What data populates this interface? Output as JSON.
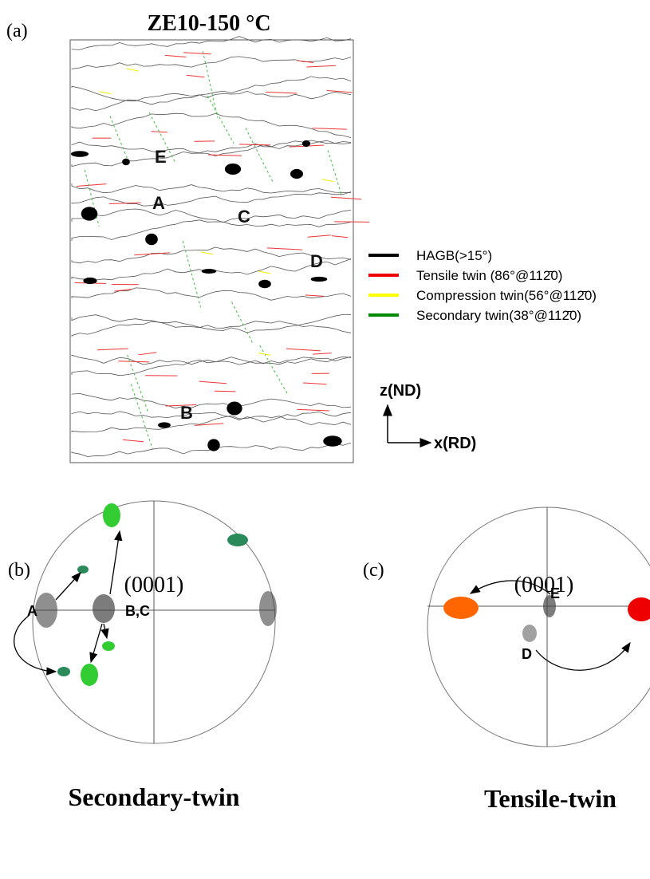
{
  "panel_a": {
    "label": "(a)",
    "title": "ZE10-150 °C",
    "grain_labels": [
      "E",
      "A",
      "C",
      "D",
      "B"
    ],
    "legend": [
      "HAGB(>15°)",
      "Tensile twin (86°@112̄0)",
      "Compression twin(56°@112̄0)",
      "Secondary twin(38°@112̄0)"
    ],
    "axes": {
      "z": "z(ND)",
      "x": "x(RD)"
    }
  },
  "panel_b": {
    "label": "(b)",
    "pole": "(0001)",
    "points": [
      "A",
      "B,C"
    ],
    "caption": "Secondary-twin"
  },
  "panel_c": {
    "label": "(c)",
    "pole": "(0001)",
    "points": [
      "E",
      "D"
    ],
    "caption": "Tensile-twin"
  }
}
